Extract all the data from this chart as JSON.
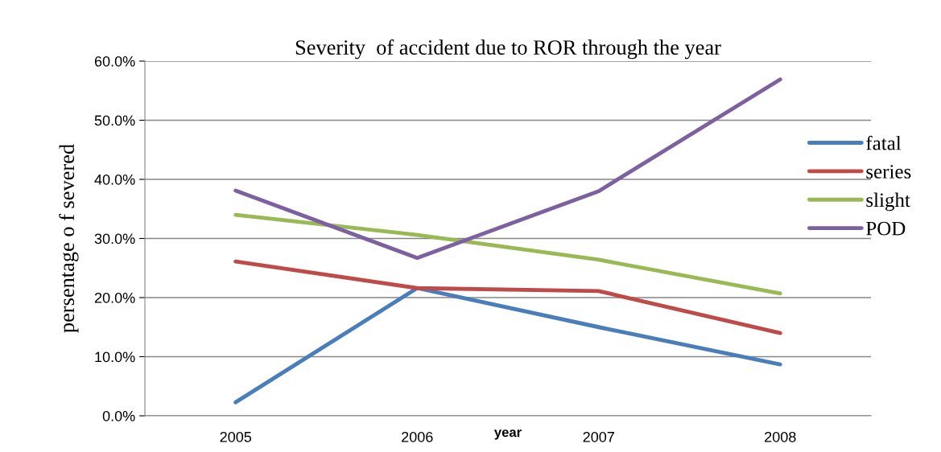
{
  "chart_data": {
    "type": "line",
    "title": "Severity  of accident due to ROR through the year",
    "xlabel": "year",
    "ylabel": "persentage o f severed",
    "categories": [
      "2005",
      "2006",
      "2007",
      "2008"
    ],
    "series": [
      {
        "name": "fatal",
        "color": "#4a7ebb",
        "values": [
          0.023,
          0.216,
          0.15,
          0.087
        ]
      },
      {
        "name": "series",
        "color": "#be4b48",
        "values": [
          0.261,
          0.216,
          0.211,
          0.14
        ]
      },
      {
        "name": "slight",
        "color": "#98b954",
        "values": [
          0.34,
          0.306,
          0.264,
          0.207
        ]
      },
      {
        "name": "POD",
        "color": "#7d60a0",
        "values": [
          0.381,
          0.267,
          0.38,
          0.569
        ]
      }
    ],
    "ylim": [
      0,
      0.6
    ],
    "yticks": [
      {
        "value": 0,
        "label": "0.0%"
      },
      {
        "value": 0.1,
        "label": "10.0%"
      },
      {
        "value": 0.2,
        "label": "20.0%"
      },
      {
        "value": 0.3,
        "label": "30.0%"
      },
      {
        "value": 0.4,
        "label": "40.0%"
      },
      {
        "value": 0.5,
        "label": "50.0%"
      },
      {
        "value": 0.6,
        "label": "60.0%"
      }
    ],
    "grid": "y",
    "legend": "right",
    "marker": "none",
    "line_style": "solid"
  }
}
